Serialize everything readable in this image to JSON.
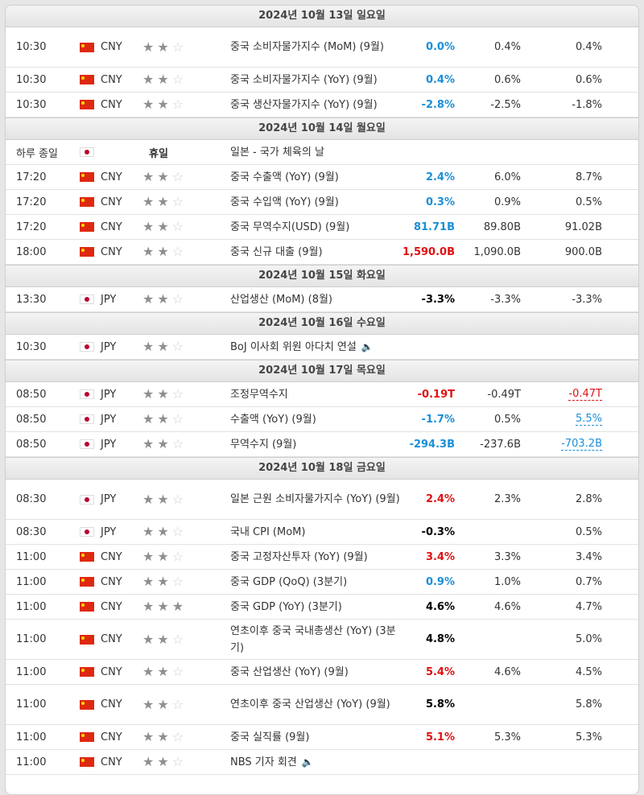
{
  "days": [
    {
      "date": "2024년 10월 13일 일요일",
      "rows": [
        {
          "time": "10:30",
          "flag": "cn",
          "cur": "CNY",
          "stars": 2,
          "event": "중국 소비자물가지수 (MoM) (9월)",
          "actual": "0.0%",
          "actual_color": "blue",
          "forecast": "0.4%",
          "previous": "0.4%",
          "h": 50
        },
        {
          "time": "10:30",
          "flag": "cn",
          "cur": "CNY",
          "stars": 2,
          "event": "중국 소비자물가지수 (YoY) (9월)",
          "actual": "0.4%",
          "actual_color": "blue",
          "forecast": "0.6%",
          "previous": "0.6%",
          "h": 31
        },
        {
          "time": "10:30",
          "flag": "cn",
          "cur": "CNY",
          "stars": 2,
          "event": "중국 생산자물가지수 (YoY) (9월)",
          "actual": "-2.8%",
          "actual_color": "blue",
          "forecast": "-2.5%",
          "previous": "-1.8%",
          "h": 31
        }
      ]
    },
    {
      "date": "2024년 10월 14일 월요일",
      "rows": [
        {
          "time": "하루 종일",
          "flag": "jp",
          "cur": "",
          "holiday": "휴일",
          "stars": 0,
          "event": "일본 - 국가 체육의 날",
          "actual": "",
          "forecast": "",
          "previous": "",
          "h": 31
        },
        {
          "time": "17:20",
          "flag": "cn",
          "cur": "CNY",
          "stars": 2,
          "event": "중국 수출액 (YoY) (9월)",
          "actual": "2.4%",
          "actual_color": "blue",
          "forecast": "6.0%",
          "previous": "8.7%",
          "h": 31
        },
        {
          "time": "17:20",
          "flag": "cn",
          "cur": "CNY",
          "stars": 2,
          "event": "중국 수입액 (YoY) (9월)",
          "actual": "0.3%",
          "actual_color": "blue",
          "forecast": "0.9%",
          "previous": "0.5%",
          "h": 31
        },
        {
          "time": "17:20",
          "flag": "cn",
          "cur": "CNY",
          "stars": 2,
          "event": "중국 무역수지(USD) (9월)",
          "actual": "81.71B",
          "actual_color": "blue",
          "forecast": "89.80B",
          "previous": "91.02B",
          "h": 31
        },
        {
          "time": "18:00",
          "flag": "cn",
          "cur": "CNY",
          "stars": 2,
          "event": "중국 신규 대출 (9월)",
          "actual": "1,590.0B",
          "actual_color": "red",
          "forecast": "1,090.0B",
          "previous": "900.0B",
          "h": 31
        }
      ]
    },
    {
      "date": "2024년 10월 15일 화요일",
      "rows": [
        {
          "time": "13:30",
          "flag": "jp",
          "cur": "JPY",
          "stars": 2,
          "event": "산업생산 (MoM) (8월)",
          "actual": "-3.3%",
          "actual_color": "black",
          "forecast": "-3.3%",
          "previous": "-3.3%",
          "h": 31
        }
      ]
    },
    {
      "date": "2024년 10월 16일 수요일",
      "rows": [
        {
          "time": "10:30",
          "flag": "jp",
          "cur": "JPY",
          "stars": 2,
          "event": "BoJ 이사회 위원 아다치 연설",
          "speaker": true,
          "actual": "",
          "forecast": "",
          "previous": "",
          "h": 31
        }
      ]
    },
    {
      "date": "2024년 10월 17일 목요일",
      "rows": [
        {
          "time": "08:50",
          "flag": "jp",
          "cur": "JPY",
          "stars": 2,
          "event": "조정무역수지",
          "actual": "-0.19T",
          "actual_color": "red",
          "forecast": "-0.49T",
          "previous": "-0.47T",
          "previous_style": "rev-red",
          "h": 31
        },
        {
          "time": "08:50",
          "flag": "jp",
          "cur": "JPY",
          "stars": 2,
          "event": "수출액 (YoY) (9월)",
          "actual": "-1.7%",
          "actual_color": "blue",
          "forecast": "0.5%",
          "previous": "5.5%",
          "previous_style": "rev-blue",
          "h": 31
        },
        {
          "time": "08:50",
          "flag": "jp",
          "cur": "JPY",
          "stars": 2,
          "event": "무역수지 (9월)",
          "actual": "-294.3B",
          "actual_color": "blue",
          "forecast": "-237.6B",
          "previous": "-703.2B",
          "previous_style": "rev-blue",
          "h": 31
        }
      ]
    },
    {
      "date": "2024년 10월 18일 금요일",
      "rows": [
        {
          "time": "08:30",
          "flag": "jp",
          "cur": "JPY",
          "stars": 2,
          "event": "일본 근원 소비자물가지수 (YoY) (9월)",
          "actual": "2.4%",
          "actual_color": "red",
          "forecast": "2.3%",
          "previous": "2.8%",
          "h": 50
        },
        {
          "time": "08:30",
          "flag": "jp",
          "cur": "JPY",
          "stars": 2,
          "event": "국내 CPI (MoM)",
          "actual": "-0.3%",
          "actual_color": "black",
          "forecast": "",
          "previous": "0.5%",
          "h": 31
        },
        {
          "time": "11:00",
          "flag": "cn",
          "cur": "CNY",
          "stars": 2,
          "event": "중국 고정자산투자 (YoY) (9월)",
          "actual": "3.4%",
          "actual_color": "red",
          "forecast": "3.3%",
          "previous": "3.4%",
          "h": 31
        },
        {
          "time": "11:00",
          "flag": "cn",
          "cur": "CNY",
          "stars": 2,
          "event": "중국 GDP (QoQ) (3분기)",
          "actual": "0.9%",
          "actual_color": "blue",
          "forecast": "1.0%",
          "previous": "0.7%",
          "h": 31
        },
        {
          "time": "11:00",
          "flag": "cn",
          "cur": "CNY",
          "stars": 3,
          "event": "중국 GDP (YoY) (3분기)",
          "actual": "4.6%",
          "actual_color": "black",
          "forecast": "4.6%",
          "previous": "4.7%",
          "h": 31
        },
        {
          "time": "11:00",
          "flag": "cn",
          "cur": "CNY",
          "stars": 2,
          "event": "연초이후 중국 국내총생산 (YoY) (3분기)",
          "actual": "4.8%",
          "actual_color": "black",
          "forecast": "",
          "previous": "5.0%",
          "h": 50
        },
        {
          "time": "11:00",
          "flag": "cn",
          "cur": "CNY",
          "stars": 2,
          "event": "중국 산업생산 (YoY) (9월)",
          "actual": "5.4%",
          "actual_color": "red",
          "forecast": "4.6%",
          "previous": "4.5%",
          "h": 31
        },
        {
          "time": "11:00",
          "flag": "cn",
          "cur": "CNY",
          "stars": 2,
          "event": "연초이후 중국 산업생산 (YoY) (9월)",
          "actual": "5.8%",
          "actual_color": "black",
          "forecast": "",
          "previous": "5.8%",
          "h": 50
        },
        {
          "time": "11:00",
          "flag": "cn",
          "cur": "CNY",
          "stars": 2,
          "event": "중국 실직률 (9월)",
          "actual": "5.1%",
          "actual_color": "red",
          "forecast": "5.3%",
          "previous": "5.3%",
          "h": 31
        },
        {
          "time": "11:00",
          "flag": "cn",
          "cur": "CNY",
          "stars": 2,
          "event": "NBS 기자 회견",
          "speaker": true,
          "actual": "",
          "forecast": "",
          "previous": "",
          "h": 31
        }
      ]
    }
  ]
}
